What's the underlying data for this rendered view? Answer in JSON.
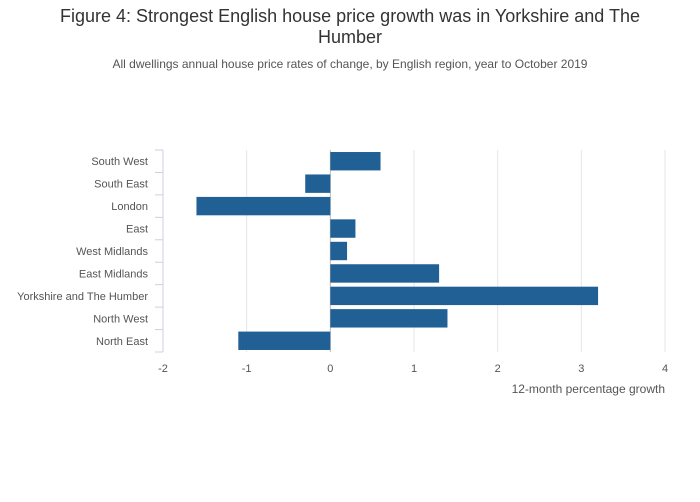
{
  "chart_data": {
    "type": "bar",
    "orientation": "horizontal",
    "title": "Figure 4: Strongest English house price growth was in Yorkshire and The Humber",
    "subtitle": "All dwellings annual house price rates of change, by English region, year to October 2019",
    "categories": [
      "South West",
      "South East",
      "London",
      "East",
      "West Midlands",
      "East Midlands",
      "Yorkshire and The Humber",
      "North West",
      "North East"
    ],
    "values": [
      0.6,
      -0.3,
      -1.6,
      0.3,
      0.2,
      1.3,
      3.2,
      1.4,
      -1.1
    ],
    "xlabel": "12-month percentage growth",
    "ylabel": "",
    "xlim": [
      -2,
      4
    ],
    "xticks": [
      "-2",
      "-1",
      "0",
      "1",
      "2",
      "3",
      "4"
    ],
    "bar_color": "#206095",
    "grid": true
  }
}
